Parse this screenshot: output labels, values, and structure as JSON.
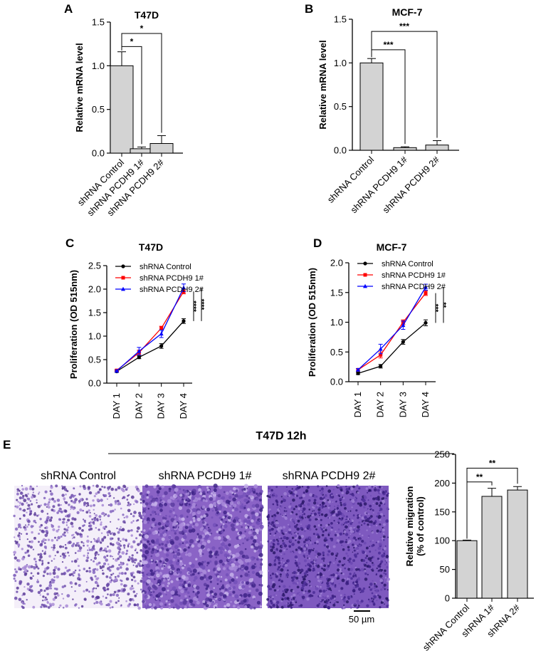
{
  "panel_labels": [
    "A",
    "B",
    "C",
    "D",
    "E"
  ],
  "panel_e": {
    "header": "T47D 12h",
    "image_captions": [
      "shRNA Control",
      "shRNA PCDH9 1#",
      "shRNA PCDH9 2#"
    ],
    "scale_bar": "50 µm",
    "stain_colors": [
      "#f3eef8",
      "#6a4aa8",
      "#4b2d96",
      "#b79bd8"
    ]
  },
  "chart_data": [
    {
      "id": "A",
      "type": "bar",
      "title": "T47D",
      "ylabel": "Relative mRNA level",
      "xlabel": "",
      "ylim": [
        0,
        1.5
      ],
      "yticks": [
        0.0,
        0.5,
        1.0,
        1.5
      ],
      "ytick_labels": [
        "0.0",
        "0.5",
        "1.0",
        "1.5"
      ],
      "categories": [
        "shRNA Control",
        "shRNA PCDH9 1#",
        "shRNA PCDH9 2#"
      ],
      "values": [
        1.0,
        0.05,
        0.11
      ],
      "errors": [
        0.16,
        0.02,
        0.09
      ],
      "bar_color": "#d3d3d3",
      "significance": [
        {
          "from": 0,
          "to": 1,
          "label": "*",
          "y": 1.22
        },
        {
          "from": 0,
          "to": 2,
          "label": "*",
          "y": 1.37
        }
      ]
    },
    {
      "id": "B",
      "type": "bar",
      "title": "MCF-7",
      "ylabel": "Relative mRNA level",
      "xlabel": "",
      "ylim": [
        0,
        1.5
      ],
      "yticks": [
        0.0,
        0.5,
        1.0,
        1.5
      ],
      "ytick_labels": [
        "0.0",
        "0.5",
        "1.0",
        "1.5"
      ],
      "categories": [
        "shRNA Control",
        "shRNA PCDH9 1#",
        "shRNA PCDH9 2#"
      ],
      "values": [
        1.0,
        0.03,
        0.06
      ],
      "errors": [
        0.05,
        0.01,
        0.05
      ],
      "bar_color": "#d3d3d3",
      "significance": [
        {
          "from": 0,
          "to": 1,
          "label": "***",
          "y": 1.15
        },
        {
          "from": 0,
          "to": 2,
          "label": "***",
          "y": 1.36
        }
      ]
    },
    {
      "id": "C",
      "type": "line",
      "title": "T47D",
      "ylabel": "Proliferation (OD 515nm)",
      "xlabel": "",
      "ylim": [
        0,
        2.5
      ],
      "yticks": [
        0.0,
        0.5,
        1.0,
        1.5,
        2.0,
        2.5
      ],
      "ytick_labels": [
        "0.0",
        "0.5",
        "1.0",
        "1.5",
        "2.0",
        "2.5"
      ],
      "x": [
        "DAY 1",
        "DAY 2",
        "DAY 3",
        "DAY 4"
      ],
      "series": [
        {
          "name": "shRNA Control",
          "color": "#000000",
          "marker": "circle",
          "values": [
            0.25,
            0.55,
            0.79,
            1.32
          ],
          "errors": [
            0.02,
            0.03,
            0.05,
            0.05
          ]
        },
        {
          "name": "shRNA PCDH9 1#",
          "color": "#ff0000",
          "marker": "square",
          "values": [
            0.27,
            0.65,
            1.17,
            1.95
          ],
          "errors": [
            0.02,
            0.05,
            0.04,
            0.05
          ]
        },
        {
          "name": "shRNA PCDH9 2#",
          "color": "#0000ff",
          "marker": "triangle",
          "values": [
            0.26,
            0.68,
            1.05,
            2.03
          ],
          "errors": [
            0.02,
            0.08,
            0.08,
            0.08
          ]
        }
      ],
      "significance": [
        {
          "label": "****",
          "y_range": [
            1.32,
            1.95
          ]
        },
        {
          "label": "****",
          "y_range": [
            1.32,
            2.03
          ]
        }
      ]
    },
    {
      "id": "D",
      "type": "line",
      "title": "MCF-7",
      "ylabel": "Proliferation (OD 515nm)",
      "xlabel": "",
      "ylim": [
        0,
        2.0
      ],
      "yticks": [
        0.0,
        0.5,
        1.0,
        1.5,
        2.0
      ],
      "ytick_labels": [
        "0.0",
        "0.5",
        "1.0",
        "1.5",
        "2.0"
      ],
      "x": [
        "DAY 1",
        "DAY 2",
        "DAY 3",
        "DAY 4"
      ],
      "series": [
        {
          "name": "shRNA Control",
          "color": "#000000",
          "marker": "circle",
          "values": [
            0.14,
            0.26,
            0.67,
            0.99
          ],
          "errors": [
            0.02,
            0.03,
            0.04,
            0.05
          ]
        },
        {
          "name": "shRNA PCDH9 1#",
          "color": "#ff0000",
          "marker": "square",
          "values": [
            0.2,
            0.45,
            1.0,
            1.49
          ],
          "errors": [
            0.02,
            0.05,
            0.04,
            0.04
          ]
        },
        {
          "name": "shRNA PCDH9 2#",
          "color": "#0000ff",
          "marker": "triangle",
          "values": [
            0.2,
            0.55,
            0.95,
            1.59
          ],
          "errors": [
            0.02,
            0.08,
            0.07,
            0.05
          ]
        }
      ],
      "significance": [
        {
          "label": "***",
          "y_range": [
            0.99,
            1.49
          ]
        },
        {
          "label": "**",
          "y_range": [
            0.99,
            1.59
          ]
        }
      ]
    },
    {
      "id": "E",
      "type": "bar",
      "title": "",
      "ylabel": "Relative migration\n(% of control)",
      "ylabel_lines": [
        "Relative migration",
        "(% of control)"
      ],
      "xlabel": "",
      "ylim": [
        0,
        250
      ],
      "yticks": [
        0,
        50,
        100,
        150,
        200,
        250
      ],
      "ytick_labels": [
        "0",
        "50",
        "100",
        "150",
        "200",
        "250"
      ],
      "categories": [
        "shRNA Control",
        "shRNA 1#",
        "shRNA 2#"
      ],
      "values": [
        100,
        177,
        188
      ],
      "errors": [
        1,
        14,
        6
      ],
      "bar_color": "#d3d3d3",
      "significance": [
        {
          "from": 0,
          "to": 1,
          "label": "**",
          "y": 202
        },
        {
          "from": 0,
          "to": 2,
          "label": "**",
          "y": 226
        }
      ]
    }
  ]
}
